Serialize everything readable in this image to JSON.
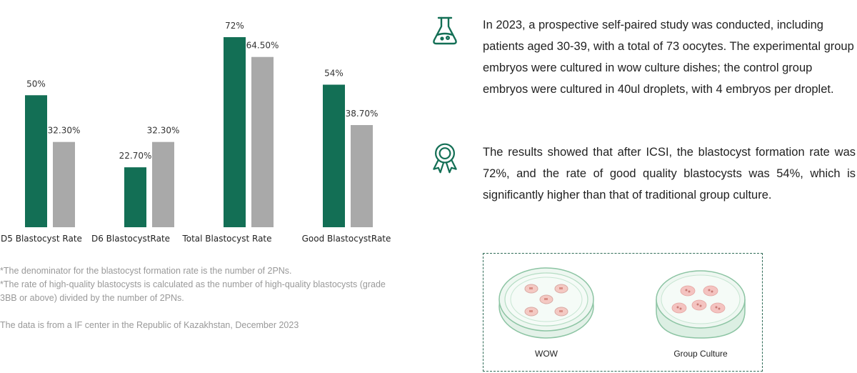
{
  "chart_data": {
    "type": "bar",
    "categories": [
      "D5 Blastocyst Rate",
      "D6 BlastocystRate",
      "Total Blastocyst Rate",
      "Good BlastocystRate"
    ],
    "series": [
      {
        "values": [
          50,
          22.7,
          72,
          54
        ],
        "labels": [
          "50%",
          "22.70%",
          "72%",
          "54%"
        ]
      },
      {
        "values": [
          32.3,
          32.3,
          64.5,
          38.7
        ],
        "labels": [
          "32.30%",
          "32.30%",
          "64.50%",
          "38.70%"
        ]
      }
    ],
    "colors": [
      "#136f55",
      "#a9a9a9"
    ],
    "ylim": [
      0,
      80
    ],
    "grid": false,
    "axes_visible": false
  },
  "notes": {
    "line1": "*The denominator for the blastocyst formation rate is the number of 2PNs.",
    "line2": "*The rate of high-quality blastocysts is calculated as the number of high-quality blastocysts (grade 3BB or above) divided by the number of 2PNs."
  },
  "source": "The data is from a IF center in the Republic of Kazakhstan, December 2023",
  "info": {
    "study": {
      "icon": "flask-icon",
      "text": "In 2023, a prospective self-paired study was conducted, including patients aged 30-39, with a total of 73 oocytes. The experimental group embryos were cultured in wow culture dishes; the control group embryos were cultured in 40ul droplets, with 4 embryos per droplet."
    },
    "results": {
      "icon": "award-ribbon-icon",
      "text": "The results showed that after ICSI, the blastocyst formation rate was 72%, and the rate of good quality blastocysts was 54%, which is significantly higher than that of traditional group culture."
    }
  },
  "dishes": {
    "wow_label": "WOW",
    "group_label": "Group Culture"
  },
  "colors": {
    "accent": "#136f55",
    "gray_bar": "#a9a9a9",
    "note_text": "#999999"
  }
}
